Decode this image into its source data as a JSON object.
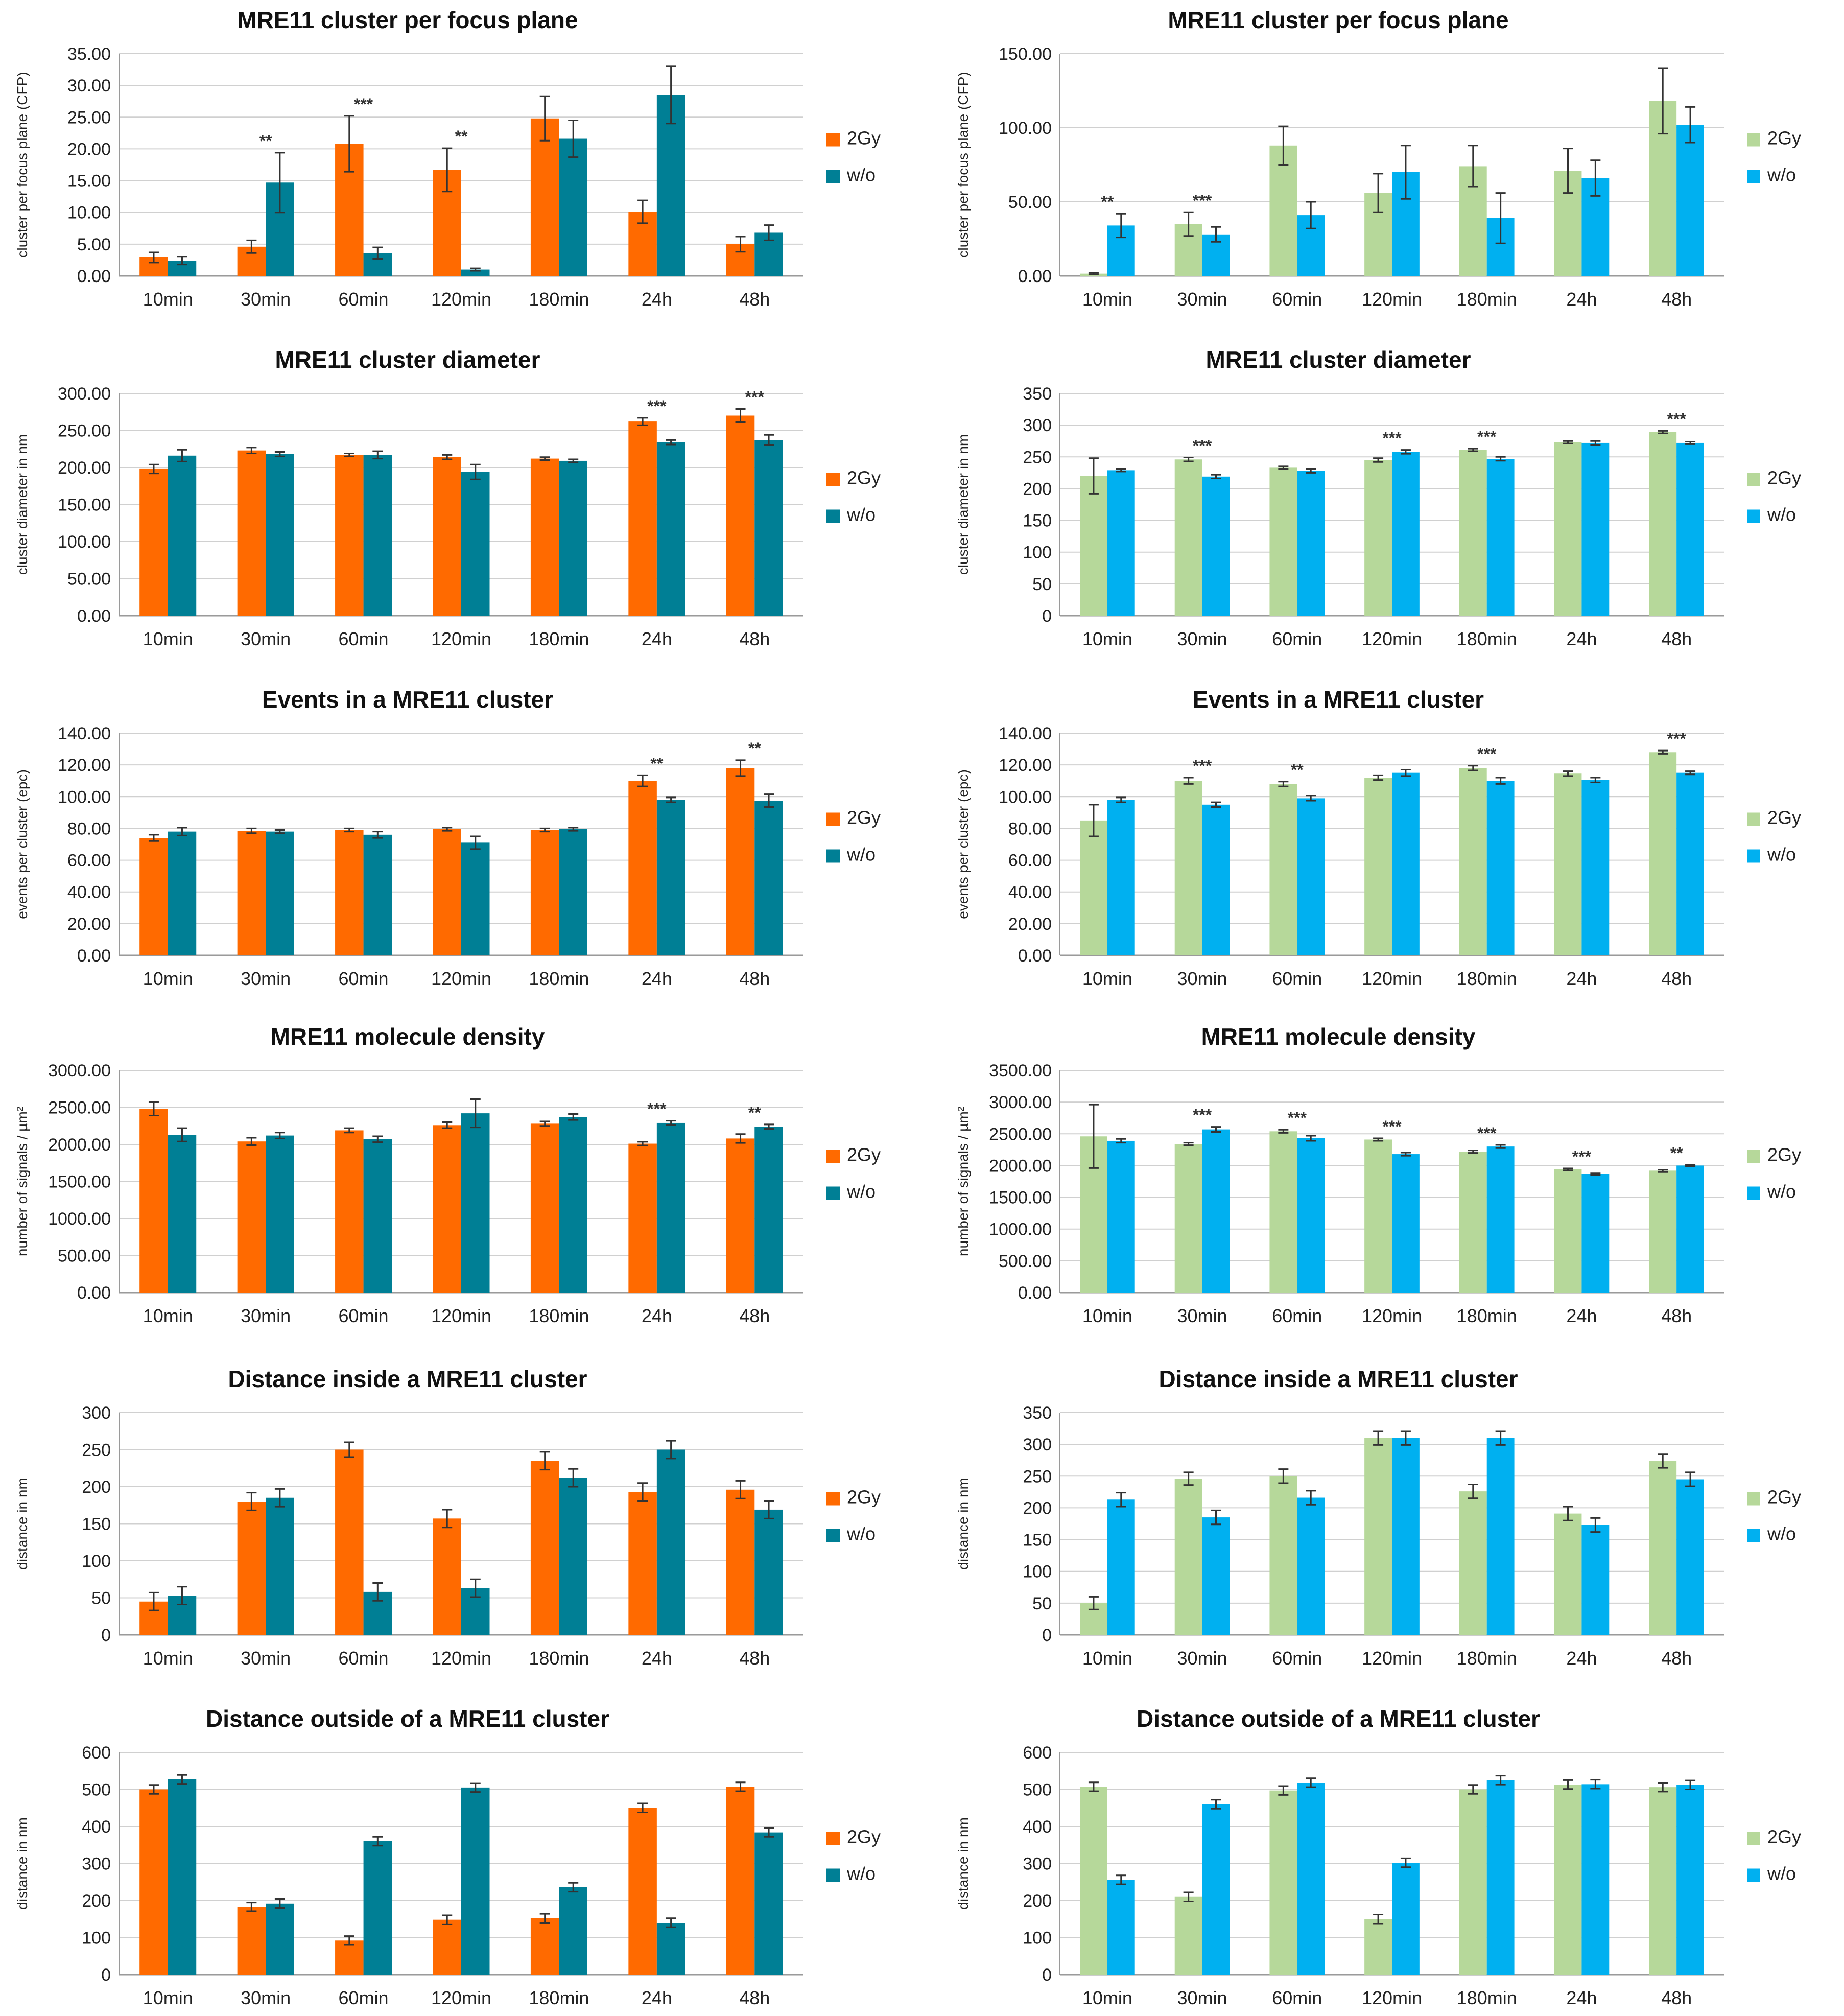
{
  "figure": {
    "colors": {
      "left_2gy": "#ff6a00",
      "left_wo": "#007f95",
      "right_2gy": "#b6d89a",
      "right_wo": "#00b0f0",
      "grid": "#d0d0d0",
      "errorbar": "#333333"
    }
  },
  "chart_data": [
    {
      "type": "bar",
      "title": "MRE11 cluster per focus plane",
      "xlabel": "",
      "ylabel": "cluster per focus plane (CFP)",
      "categories": [
        "10min",
        "30min",
        "60min",
        "120min",
        "180min",
        "24h",
        "48h"
      ],
      "ylim": [
        0,
        35
      ],
      "yticks": [
        "0.00",
        "5.00",
        "10.00",
        "15.00",
        "20.00",
        "25.00",
        "30.00",
        "35.00"
      ],
      "series": [
        {
          "name": "2Gy",
          "values": [
            2.9,
            4.6,
            20.8,
            16.7,
            24.8,
            10.1,
            5.0
          ],
          "errors": [
            0.8,
            1.0,
            4.4,
            3.4,
            3.5,
            1.8,
            1.2
          ]
        },
        {
          "name": "w/o",
          "values": [
            2.4,
            14.7,
            3.6,
            1.0,
            21.6,
            28.5,
            6.8
          ],
          "errors": [
            0.6,
            4.7,
            0.9,
            0.2,
            2.9,
            4.5,
            1.2
          ]
        }
      ],
      "significance": [
        {
          "category": "30min",
          "label": "**"
        },
        {
          "category": "60min",
          "label": "***"
        },
        {
          "category": "120min",
          "label": "**"
        }
      ],
      "legend": "right"
    },
    {
      "type": "bar",
      "title": "MRE11 cluster per focus plane",
      "xlabel": "",
      "ylabel": "cluster per focus plane (CFP)",
      "categories": [
        "10min",
        "30min",
        "60min",
        "120min",
        "180min",
        "24h",
        "48h"
      ],
      "ylim": [
        0,
        150
      ],
      "yticks": [
        "0.00",
        "50.00",
        "100.00",
        "150.00"
      ],
      "series": [
        {
          "name": "2Gy",
          "values": [
            1.5,
            35.0,
            88.0,
            56.0,
            74.0,
            71.0,
            118.0
          ],
          "errors": [
            0.5,
            8.0,
            13.0,
            13.0,
            14.0,
            15.0,
            22.0
          ]
        },
        {
          "name": "w/o",
          "values": [
            34.0,
            28.0,
            41.0,
            70.0,
            39.0,
            66.0,
            102.0
          ],
          "errors": [
            8.0,
            5.0,
            9.0,
            18.0,
            17.0,
            12.0,
            12.0
          ]
        }
      ],
      "significance": [
        {
          "category": "10min",
          "label": "**"
        },
        {
          "category": "30min",
          "label": "***"
        }
      ],
      "legend": "right"
    },
    {
      "type": "bar",
      "title": "MRE11 cluster diameter",
      "xlabel": "",
      "ylabel": "cluster diameter in nm",
      "categories": [
        "10min",
        "30min",
        "60min",
        "120min",
        "180min",
        "24h",
        "48h"
      ],
      "ylim": [
        0,
        300
      ],
      "yticks": [
        "0.00",
        "50.00",
        "100.00",
        "150.00",
        "200.00",
        "250.00",
        "300.00"
      ],
      "series": [
        {
          "name": "2Gy",
          "values": [
            198,
            223,
            217,
            214,
            212,
            262,
            270
          ],
          "errors": [
            6,
            4,
            2,
            3,
            2,
            5,
            9
          ]
        },
        {
          "name": "w/o",
          "values": [
            216,
            218,
            217,
            194,
            209,
            234,
            237
          ],
          "errors": [
            8,
            3,
            5,
            10,
            2,
            3,
            7
          ]
        }
      ],
      "significance": [
        {
          "category": "24h",
          "label": "***"
        },
        {
          "category": "48h",
          "label": "***"
        }
      ],
      "legend": "right"
    },
    {
      "type": "bar",
      "title": "MRE11 cluster diameter",
      "xlabel": "",
      "ylabel": "cluster diameter in nm",
      "categories": [
        "10min",
        "30min",
        "60min",
        "120min",
        "180min",
        "24h",
        "48h"
      ],
      "ylim": [
        0,
        350
      ],
      "yticks": [
        "0",
        "50",
        "100",
        "150",
        "200",
        "250",
        "300",
        "350"
      ],
      "series": [
        {
          "name": "2Gy",
          "values": [
            220,
            246,
            233,
            245,
            261,
            273,
            289
          ],
          "errors": [
            28,
            3,
            2,
            3,
            2,
            2,
            2
          ]
        },
        {
          "name": "w/o",
          "values": [
            229,
            219,
            228,
            258,
            247,
            272,
            272
          ],
          "errors": [
            2,
            3,
            3,
            3,
            3,
            3,
            2
          ]
        }
      ],
      "significance": [
        {
          "category": "30min",
          "label": "***"
        },
        {
          "category": "120min",
          "label": "***"
        },
        {
          "category": "180min",
          "label": "***"
        },
        {
          "category": "48h",
          "label": "***"
        }
      ],
      "legend": "right"
    },
    {
      "type": "bar",
      "title": "Events in a MRE11 cluster",
      "xlabel": "",
      "ylabel": "events per cluster (epc)",
      "categories": [
        "10min",
        "30min",
        "60min",
        "120min",
        "180min",
        "24h",
        "48h"
      ],
      "ylim": [
        0,
        140
      ],
      "yticks": [
        "0.00",
        "20.00",
        "40.00",
        "60.00",
        "80.00",
        "100.00",
        "120.00",
        "140.00"
      ],
      "series": [
        {
          "name": "2Gy",
          "values": [
            74,
            78.5,
            79,
            79.5,
            79,
            110,
            118
          ],
          "errors": [
            2,
            1.5,
            1,
            1,
            1,
            3.5,
            5
          ]
        },
        {
          "name": "w/o",
          "values": [
            78,
            78,
            76,
            71,
            79.5,
            98,
            97.5
          ],
          "errors": [
            2.5,
            1,
            2,
            4,
            1,
            1.5,
            4
          ]
        }
      ],
      "significance": [
        {
          "category": "24h",
          "label": "**"
        },
        {
          "category": "48h",
          "label": "**"
        }
      ],
      "legend": "right"
    },
    {
      "type": "bar",
      "title": "Events in a MRE11 cluster",
      "xlabel": "",
      "ylabel": "events per cluster (epc)",
      "categories": [
        "10min",
        "30min",
        "60min",
        "120min",
        "180min",
        "24h",
        "48h"
      ],
      "ylim": [
        0,
        140
      ],
      "yticks": [
        "0.00",
        "20.00",
        "40.00",
        "60.00",
        "80.00",
        "100.00",
        "120.00",
        "140.00"
      ],
      "series": [
        {
          "name": "2Gy",
          "values": [
            85,
            110,
            108,
            112,
            118,
            114.5,
            128
          ],
          "errors": [
            10,
            2,
            1.5,
            1.5,
            1.5,
            1.5,
            1
          ]
        },
        {
          "name": "w/o",
          "values": [
            98,
            95,
            99,
            115,
            110,
            110.5,
            115
          ],
          "errors": [
            1.5,
            1.5,
            1.5,
            2,
            2,
            1.5,
            1
          ]
        }
      ],
      "significance": [
        {
          "category": "30min",
          "label": "***"
        },
        {
          "category": "60min",
          "label": "**"
        },
        {
          "category": "180min",
          "label": "***"
        },
        {
          "category": "48h",
          "label": "***"
        }
      ],
      "legend": "right"
    },
    {
      "type": "bar",
      "title": "MRE11 molecule density",
      "xlabel": "",
      "ylabel": "number of signals / µm²",
      "categories": [
        "10min",
        "30min",
        "60min",
        "120min",
        "180min",
        "24h",
        "48h"
      ],
      "ylim": [
        0,
        3000
      ],
      "yticks": [
        "0.00",
        "500.00",
        "1000.00",
        "1500.00",
        "2000.00",
        "2500.00",
        "3000.00"
      ],
      "series": [
        {
          "name": "2Gy",
          "values": [
            2480,
            2040,
            2190,
            2260,
            2280,
            2010,
            2080
          ],
          "errors": [
            90,
            50,
            30,
            40,
            30,
            25,
            60
          ]
        },
        {
          "name": "w/o",
          "values": [
            2130,
            2120,
            2070,
            2420,
            2370,
            2290,
            2240
          ],
          "errors": [
            90,
            40,
            40,
            190,
            40,
            30,
            30
          ]
        }
      ],
      "significance": [
        {
          "category": "24h",
          "label": "***"
        },
        {
          "category": "48h",
          "label": "**"
        }
      ],
      "legend": "right"
    },
    {
      "type": "bar",
      "title": "MRE11 molecule density",
      "xlabel": "",
      "ylabel": "number of signals / µm²",
      "categories": [
        "10min",
        "30min",
        "60min",
        "120min",
        "180min",
        "24h",
        "48h"
      ],
      "ylim": [
        0,
        3500
      ],
      "yticks": [
        "0.00",
        "500.00",
        "1000.00",
        "1500.00",
        "2000.00",
        "2500.00",
        "3000.00",
        "3500.00"
      ],
      "series": [
        {
          "name": "2Gy",
          "values": [
            2460,
            2340,
            2540,
            2410,
            2220,
            1940,
            1920
          ],
          "errors": [
            500,
            20,
            25,
            20,
            20,
            15,
            15
          ]
        },
        {
          "name": "w/o",
          "values": [
            2390,
            2570,
            2430,
            2180,
            2300,
            1870,
            2000
          ],
          "errors": [
            30,
            40,
            40,
            25,
            25,
            15,
            10
          ]
        }
      ],
      "significance": [
        {
          "category": "30min",
          "label": "***"
        },
        {
          "category": "60min",
          "label": "***"
        },
        {
          "category": "120min",
          "label": "***"
        },
        {
          "category": "180min",
          "label": "***"
        },
        {
          "category": "24h",
          "label": "***"
        },
        {
          "category": "48h",
          "label": "**"
        }
      ],
      "legend": "right"
    },
    {
      "type": "bar",
      "title": "Distance inside a MRE11 cluster",
      "xlabel": "",
      "ylabel": "distance in nm",
      "categories": [
        "10min",
        "30min",
        "60min",
        "120min",
        "180min",
        "24h",
        "48h"
      ],
      "ylim": [
        0,
        300
      ],
      "yticks": [
        "0",
        "50",
        "100",
        "150",
        "200",
        "250",
        "300"
      ],
      "series": [
        {
          "name": "2Gy",
          "values": [
            45,
            180,
            250,
            157,
            235,
            193,
            196
          ],
          "errors": [
            12,
            12,
            10,
            12,
            12,
            12,
            12
          ]
        },
        {
          "name": "w/o",
          "values": [
            53,
            185,
            58,
            63,
            212,
            250,
            169
          ],
          "errors": [
            12,
            12,
            12,
            12,
            12,
            12,
            12
          ]
        }
      ],
      "significance": [],
      "legend": "right"
    },
    {
      "type": "bar",
      "title": "Distance inside a MRE11 cluster",
      "xlabel": "",
      "ylabel": "distance in nm",
      "categories": [
        "10min",
        "30min",
        "60min",
        "120min",
        "180min",
        "24h",
        "48h"
      ],
      "ylim": [
        0,
        350
      ],
      "yticks": [
        "0",
        "50",
        "100",
        "150",
        "200",
        "250",
        "300",
        "350"
      ],
      "series": [
        {
          "name": "2Gy",
          "values": [
            50,
            246,
            250,
            310,
            226,
            191,
            274
          ],
          "errors": [
            10,
            10,
            11,
            11,
            11,
            11,
            11
          ]
        },
        {
          "name": "w/o",
          "values": [
            213,
            185,
            216,
            310,
            310,
            173,
            245
          ],
          "errors": [
            11,
            11,
            11,
            11,
            11,
            11,
            11
          ]
        }
      ],
      "significance": [],
      "legend": "right"
    },
    {
      "type": "bar",
      "title": "Distance outside of a MRE11 cluster",
      "xlabel": "",
      "ylabel": "distance in nm",
      "categories": [
        "10min",
        "30min",
        "60min",
        "120min",
        "180min",
        "24h",
        "48h"
      ],
      "ylim": [
        0,
        600
      ],
      "yticks": [
        "0",
        "100",
        "200",
        "300",
        "400",
        "500",
        "600"
      ],
      "series": [
        {
          "name": "2Gy",
          "values": [
            500,
            183,
            92,
            148,
            152,
            450,
            507
          ],
          "errors": [
            12,
            12,
            12,
            12,
            12,
            12,
            12
          ]
        },
        {
          "name": "w/o",
          "values": [
            527,
            192,
            360,
            505,
            236,
            140,
            384
          ],
          "errors": [
            12,
            12,
            12,
            12,
            12,
            12,
            12
          ]
        }
      ],
      "significance": [],
      "legend": "right"
    },
    {
      "type": "bar",
      "title": "Distance outside of a MRE11 cluster",
      "xlabel": "",
      "ylabel": "distance in nm",
      "categories": [
        "10min",
        "30min",
        "60min",
        "120min",
        "180min",
        "24h",
        "48h"
      ],
      "ylim": [
        0,
        600
      ],
      "yticks": [
        "0",
        "100",
        "200",
        "300",
        "400",
        "500",
        "600"
      ],
      "series": [
        {
          "name": "2Gy",
          "values": [
            507,
            210,
            497,
            150,
            500,
            513,
            506
          ],
          "errors": [
            12,
            12,
            12,
            12,
            12,
            12,
            12
          ]
        },
        {
          "name": "w/o",
          "values": [
            256,
            460,
            518,
            302,
            525,
            514,
            512
          ],
          "errors": [
            12,
            12,
            12,
            12,
            12,
            12,
            12
          ]
        }
      ],
      "significance": [],
      "legend": "right"
    }
  ]
}
